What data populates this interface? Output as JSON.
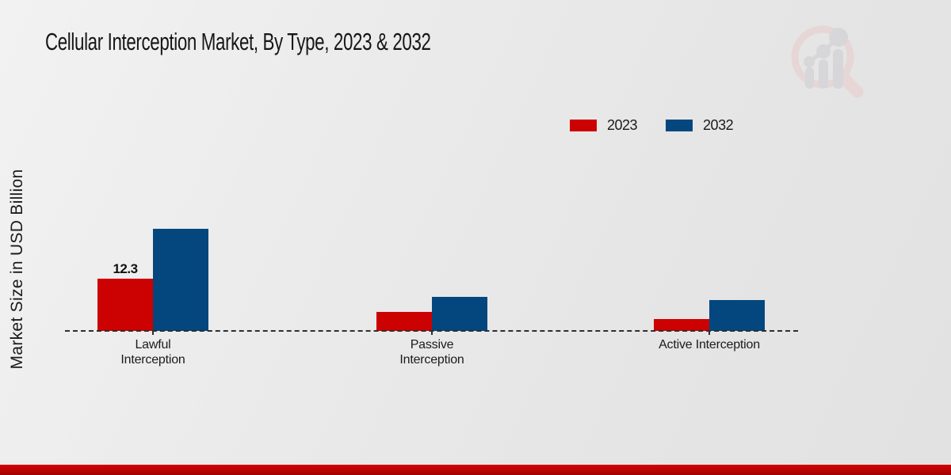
{
  "title": "Cellular Interception Market, By Type, 2023 & 2032",
  "y_axis_label": "Market Size in USD Billion",
  "legend": {
    "items": [
      {
        "label": "2023",
        "color": "#cc0101"
      },
      {
        "label": "2032",
        "color": "#04477e"
      }
    ]
  },
  "chart_data": {
    "type": "bar",
    "title": "Cellular Interception Market, By Type, 2023 & 2032",
    "ylabel": "Market Size in USD Billion",
    "xlabel": "",
    "categories": [
      "Lawful Interception",
      "Passive Interception",
      "Active Interception"
    ],
    "series": [
      {
        "name": "2023",
        "color": "#cc0101",
        "values": [
          12.3,
          4.4,
          2.8
        ]
      },
      {
        "name": "2032",
        "color": "#04477e",
        "values": [
          24.0,
          8.1,
          7.3
        ]
      }
    ],
    "data_labels": [
      {
        "series": "2023",
        "category": "Lawful Interception",
        "text": "12.3"
      }
    ],
    "ylim": [
      0,
      26
    ],
    "grid": false,
    "axis_baseline_style": "dashed",
    "legend_position": "top-right"
  },
  "watermark_icon": "market-research-future-logo",
  "footer_accent_color": "#bb0303"
}
